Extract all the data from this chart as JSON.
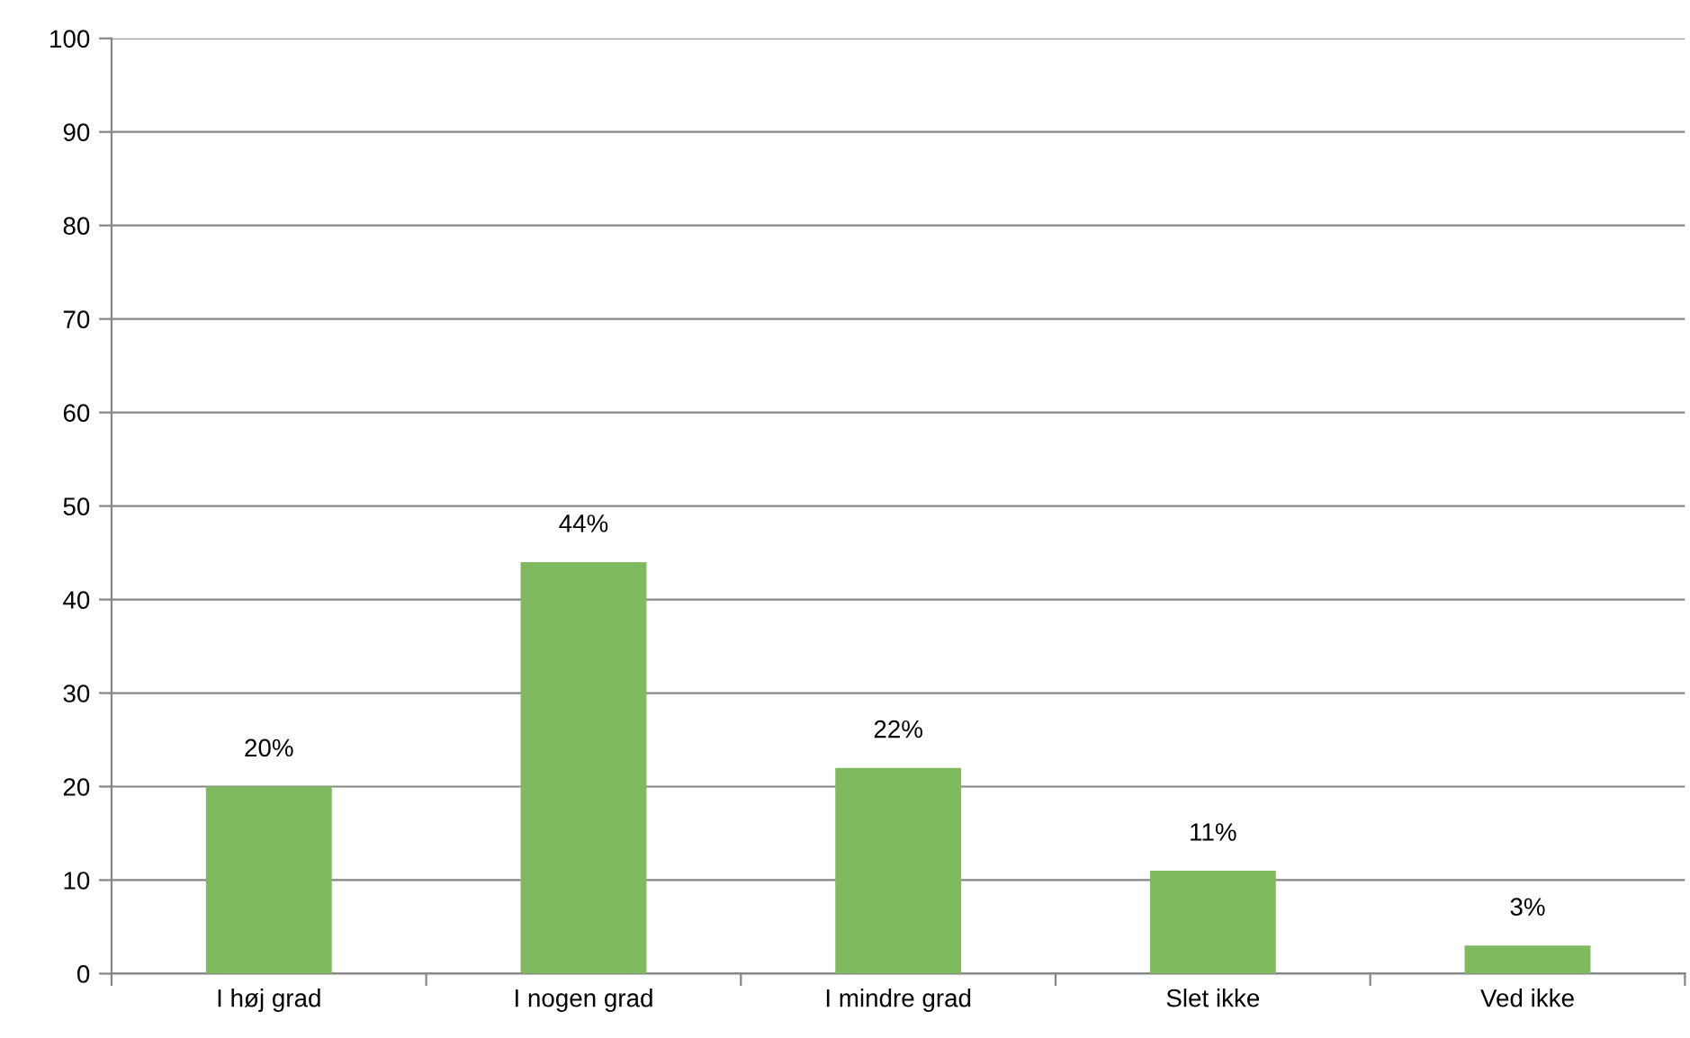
{
  "chart_data": {
    "type": "bar",
    "categories": [
      "I høj grad",
      "I nogen grad",
      "I mindre grad",
      "Slet ikke",
      "Ved ikke"
    ],
    "values": [
      20,
      44,
      22,
      11,
      3
    ],
    "value_labels": [
      "20%",
      "44%",
      "22%",
      "11%",
      "3%"
    ],
    "color": "#7fba5f",
    "ylim": [
      0,
      100
    ],
    "yticks": [
      0,
      10,
      20,
      30,
      40,
      50,
      60,
      70,
      80,
      90,
      100
    ],
    "grid": "y",
    "legend": false
  }
}
